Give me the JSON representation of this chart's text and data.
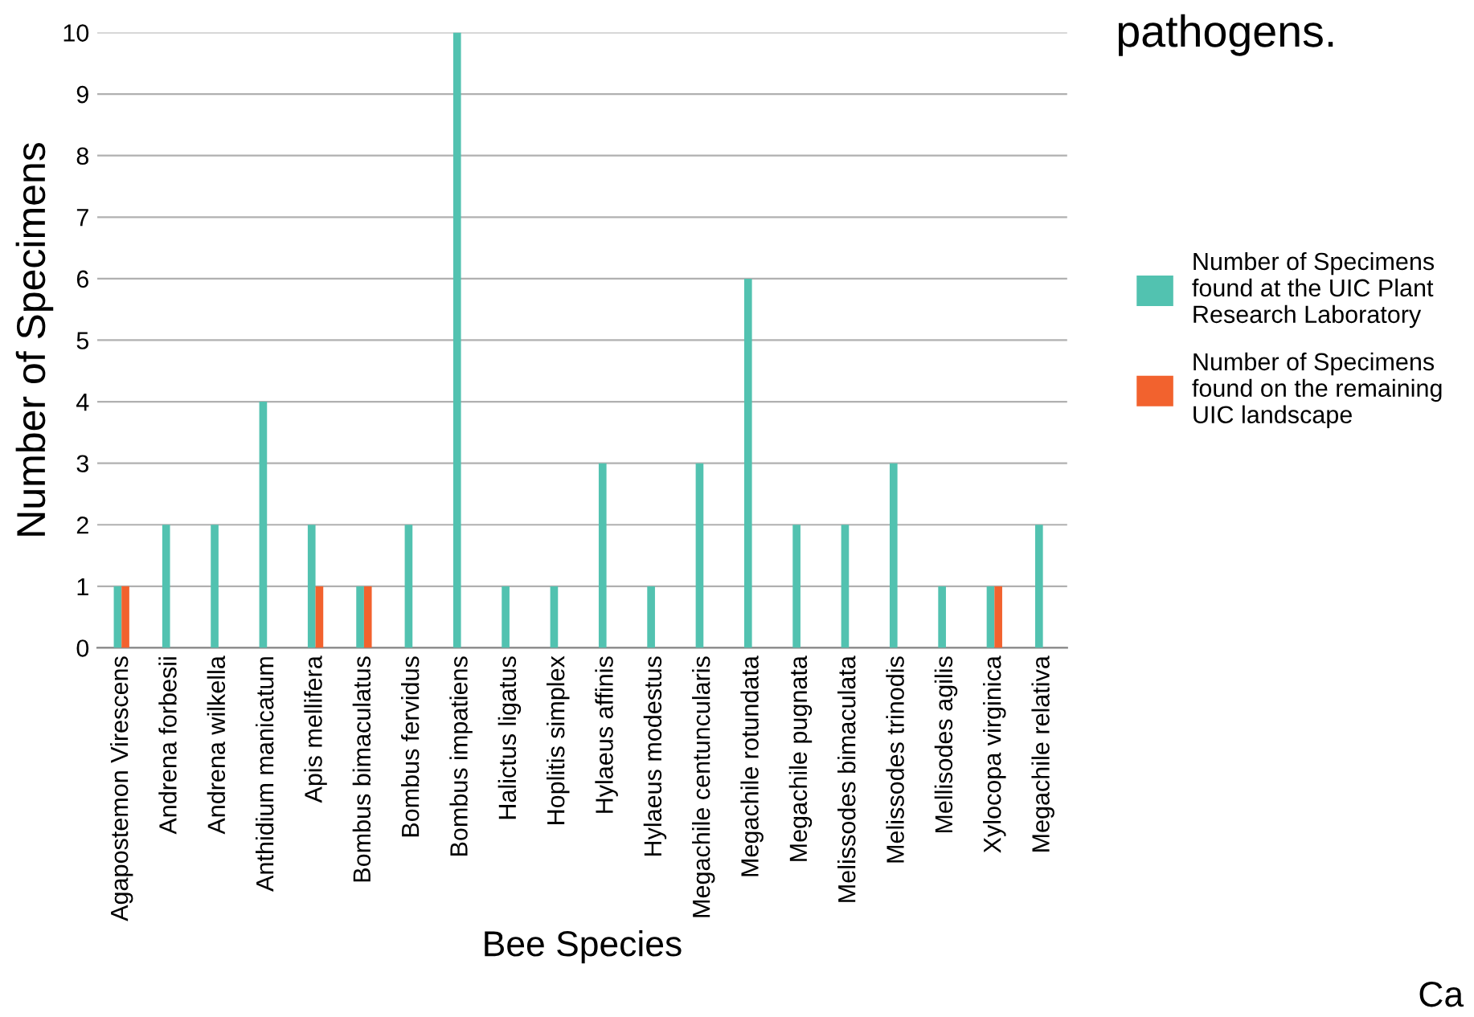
{
  "chart_data": {
    "type": "bar",
    "xlabel": "Bee Species",
    "ylabel": "Number of Specimens",
    "categories": [
      "Agapostemon Virescens",
      "Andrena forbesii",
      "Andrena wilkella",
      "Anthidium manicatum",
      "Apis mellifera",
      "Bombus bimaculatus",
      "Bombus fervidus",
      "Bombus impatiens",
      "Halictus ligatus",
      "Hoplitis simplex",
      "Hylaeus affinis",
      "Hylaeus modestus",
      "Megachile centuncularis",
      "Megachile rotundata",
      "Megachile pugnata",
      "Melissodes bimaculata",
      "Melissodes trinodis",
      "Mellisodes agilis",
      "Xylocopa virginica",
      "Megachile relativa"
    ],
    "series": [
      {
        "name": "Number of Specimens found at the UIC Plant Research Laboratory",
        "color": "#52c2b0",
        "values": [
          1,
          2,
          2,
          4,
          2,
          1,
          2,
          10,
          1,
          1,
          3,
          1,
          3,
          6,
          2,
          2,
          3,
          1,
          1,
          2
        ]
      },
      {
        "name": "Number of Specimens found on the remaining UIC landscape",
        "color": "#f2622e",
        "values": [
          1,
          null,
          null,
          null,
          1,
          1,
          null,
          null,
          null,
          null,
          null,
          null,
          null,
          null,
          null,
          null,
          null,
          null,
          1,
          null
        ]
      }
    ],
    "ylim": [
      0,
      10
    ],
    "yticks": [
      0,
      1,
      2,
      3,
      4,
      5,
      6,
      7,
      8,
      9,
      10
    ],
    "grid": "y",
    "legend": "right",
    "annotations": [
      "pathogens.",
      "Ca"
    ]
  }
}
